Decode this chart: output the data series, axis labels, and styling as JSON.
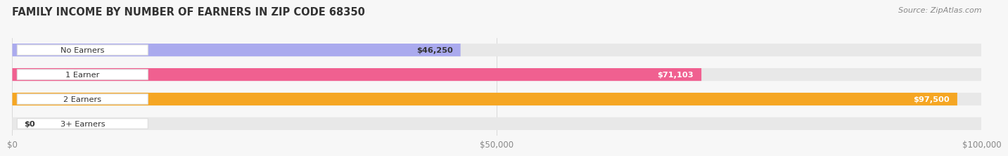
{
  "title": "FAMILY INCOME BY NUMBER OF EARNERS IN ZIP CODE 68350",
  "source": "Source: ZipAtlas.com",
  "categories": [
    "No Earners",
    "1 Earner",
    "2 Earners",
    "3+ Earners"
  ],
  "values": [
    46250,
    71103,
    97500,
    0
  ],
  "bar_colors": [
    "#aaaaee",
    "#f06090",
    "#f5a623",
    "#f5a0a0"
  ],
  "bar_bg_color": "#e8e8e8",
  "value_label_colors": [
    "#333333",
    "#ffffff",
    "#ffffff",
    "#333333"
  ],
  "value_labels": [
    "$46,250",
    "$71,103",
    "$97,500",
    "$0"
  ],
  "xlim": [
    0,
    100000
  ],
  "xtick_values": [
    0,
    50000,
    100000
  ],
  "xtick_labels": [
    "$0",
    "$50,000",
    "$100,000"
  ],
  "background_color": "#f7f7f7",
  "title_fontsize": 10.5,
  "bar_height": 0.52
}
